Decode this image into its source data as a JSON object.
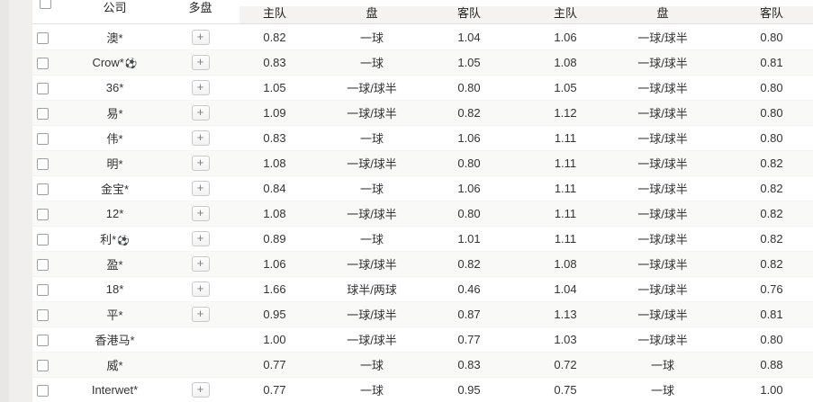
{
  "columns": {
    "company": "公司",
    "multi": "多盘",
    "home": "主队",
    "handicap": "盘",
    "away": "客队"
  },
  "icons": {
    "plus_button": "+",
    "soccer_ball": "⚽"
  },
  "colors": {
    "stripe": "#f9f9f8",
    "header_band": "#f4f3f2",
    "header_border": "#e0e0e0",
    "gutter_dark": "#e8e7e5",
    "gutter_light": "#f0efee",
    "text": "#333333"
  },
  "rows": [
    {
      "company": "澳*",
      "ball": false,
      "multi": true,
      "odds1": {
        "home": "0.82",
        "handicap": "一球",
        "away": "1.04"
      },
      "odds2": {
        "home": "1.06",
        "handicap": "一球/球半",
        "away": "0.80"
      }
    },
    {
      "company": "Crow*",
      "ball": true,
      "multi": true,
      "odds1": {
        "home": "0.83",
        "handicap": "一球",
        "away": "1.05"
      },
      "odds2": {
        "home": "1.08",
        "handicap": "一球/球半",
        "away": "0.81"
      }
    },
    {
      "company": "36*",
      "ball": false,
      "multi": true,
      "odds1": {
        "home": "1.05",
        "handicap": "一球/球半",
        "away": "0.80"
      },
      "odds2": {
        "home": "1.05",
        "handicap": "一球/球半",
        "away": "0.80"
      }
    },
    {
      "company": "易*",
      "ball": false,
      "multi": true,
      "odds1": {
        "home": "1.09",
        "handicap": "一球/球半",
        "away": "0.82"
      },
      "odds2": {
        "home": "1.12",
        "handicap": "一球/球半",
        "away": "0.80"
      }
    },
    {
      "company": "伟*",
      "ball": false,
      "multi": true,
      "odds1": {
        "home": "0.83",
        "handicap": "一球",
        "away": "1.06"
      },
      "odds2": {
        "home": "1.11",
        "handicap": "一球/球半",
        "away": "0.80"
      }
    },
    {
      "company": "明*",
      "ball": false,
      "multi": true,
      "odds1": {
        "home": "1.08",
        "handicap": "一球/球半",
        "away": "0.80"
      },
      "odds2": {
        "home": "1.11",
        "handicap": "一球/球半",
        "away": "0.82"
      }
    },
    {
      "company": "金宝*",
      "ball": false,
      "multi": true,
      "odds1": {
        "home": "0.84",
        "handicap": "一球",
        "away": "1.06"
      },
      "odds2": {
        "home": "1.11",
        "handicap": "一球/球半",
        "away": "0.82"
      }
    },
    {
      "company": "12*",
      "ball": false,
      "multi": true,
      "odds1": {
        "home": "1.08",
        "handicap": "一球/球半",
        "away": "0.80"
      },
      "odds2": {
        "home": "1.11",
        "handicap": "一球/球半",
        "away": "0.82"
      }
    },
    {
      "company": "利*",
      "ball": true,
      "multi": true,
      "odds1": {
        "home": "0.89",
        "handicap": "一球",
        "away": "1.01"
      },
      "odds2": {
        "home": "1.11",
        "handicap": "一球/球半",
        "away": "0.82"
      }
    },
    {
      "company": "盈*",
      "ball": false,
      "multi": true,
      "odds1": {
        "home": "1.06",
        "handicap": "一球/球半",
        "away": "0.82"
      },
      "odds2": {
        "home": "1.08",
        "handicap": "一球/球半",
        "away": "0.82"
      }
    },
    {
      "company": "18*",
      "ball": false,
      "multi": true,
      "odds1": {
        "home": "1.66",
        "handicap": "球半/两球",
        "away": "0.46"
      },
      "odds2": {
        "home": "1.04",
        "handicap": "一球/球半",
        "away": "0.76"
      }
    },
    {
      "company": "平*",
      "ball": false,
      "multi": true,
      "odds1": {
        "home": "0.95",
        "handicap": "一球/球半",
        "away": "0.87"
      },
      "odds2": {
        "home": "1.13",
        "handicap": "一球/球半",
        "away": "0.81"
      }
    },
    {
      "company": "香港马*",
      "ball": false,
      "multi": false,
      "odds1": {
        "home": "1.00",
        "handicap": "一球/球半",
        "away": "0.77"
      },
      "odds2": {
        "home": "1.03",
        "handicap": "一球/球半",
        "away": "0.80"
      }
    },
    {
      "company": "威*",
      "ball": false,
      "multi": false,
      "odds1": {
        "home": "0.77",
        "handicap": "一球",
        "away": "0.83"
      },
      "odds2": {
        "home": "0.72",
        "handicap": "一球",
        "away": "0.88"
      }
    },
    {
      "company": "Interwet*",
      "ball": false,
      "multi": true,
      "odds1": {
        "home": "0.77",
        "handicap": "一球",
        "away": "0.95"
      },
      "odds2": {
        "home": "0.75",
        "handicap": "一球",
        "away": "1.00"
      }
    }
  ]
}
